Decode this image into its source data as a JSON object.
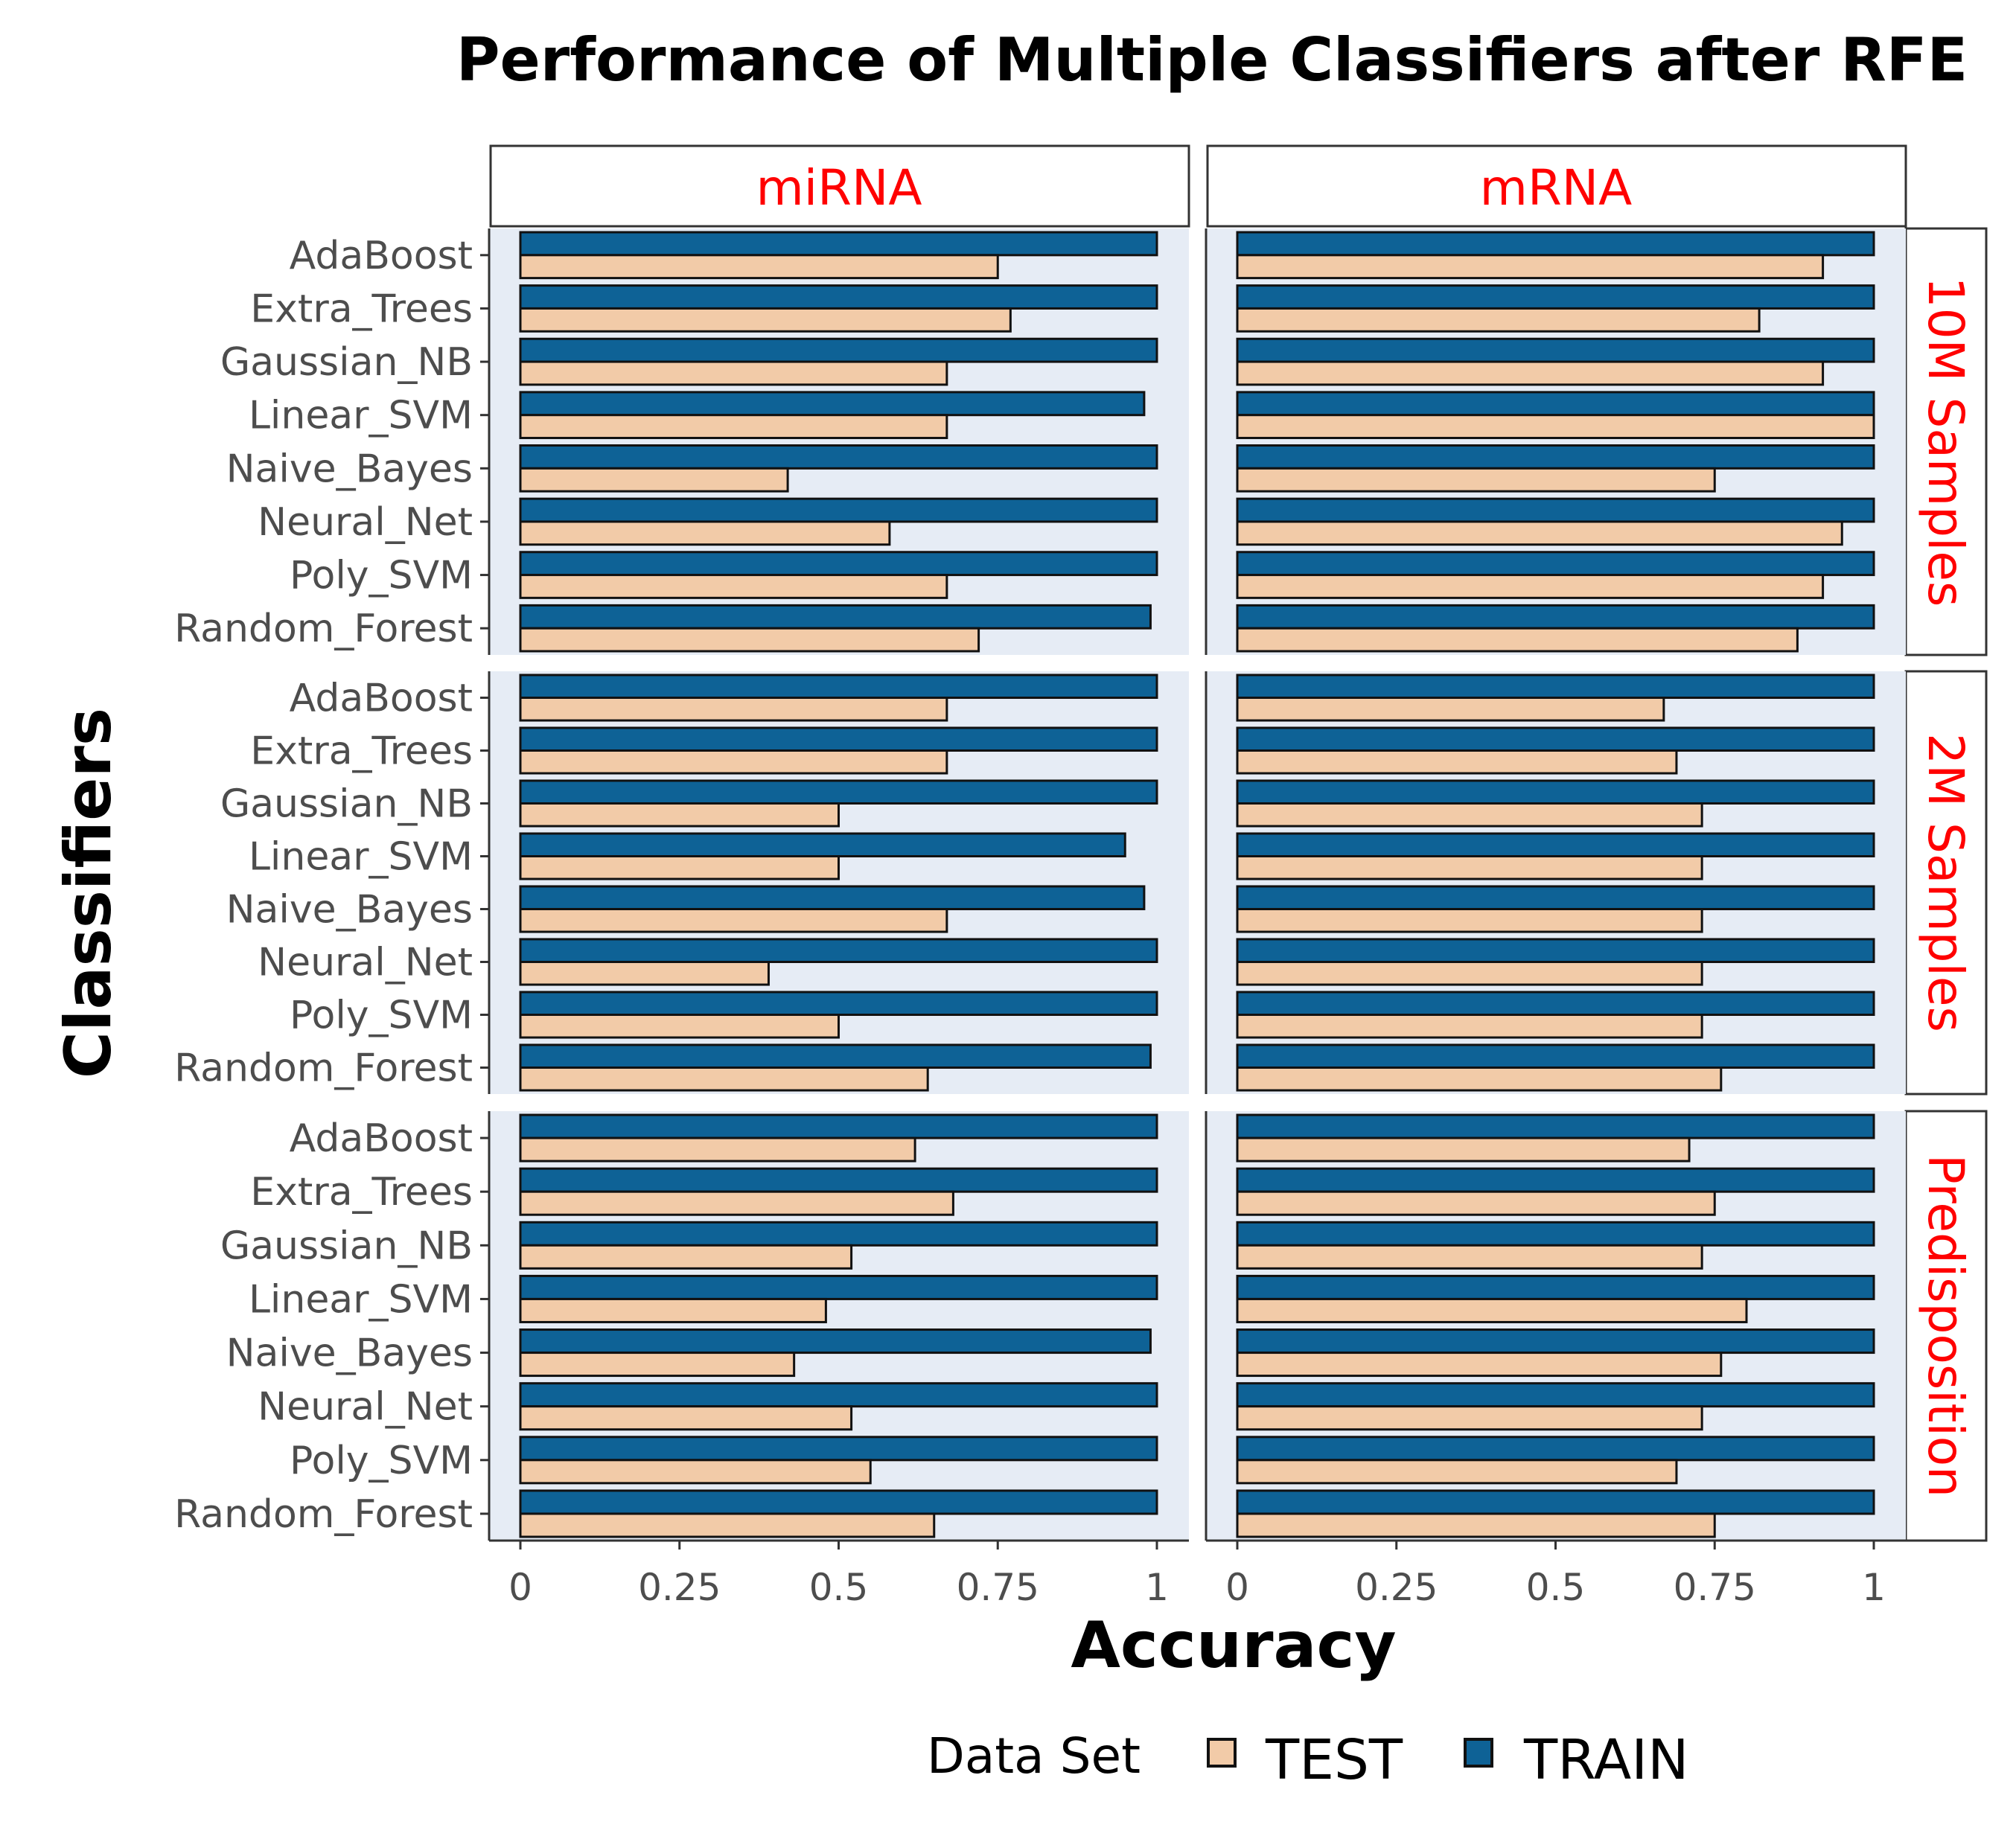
{
  "chart_data": {
    "type": "bar",
    "orientation": "horizontal",
    "title": "Performance of Multiple Classifiers after RFE",
    "xlabel": "Accuracy",
    "ylabel": "Classifiers",
    "xlim": [
      0,
      1
    ],
    "x_ticks": [
      "0",
      "0.25",
      "0.5",
      "0.75",
      "1"
    ],
    "x_tick_values": [
      0,
      0.25,
      0.5,
      0.75,
      1
    ],
    "categories": [
      "AdaBoost",
      "Extra_Trees",
      "Gaussian_NB",
      "Linear_SVM",
      "Naive_Bayes",
      "Neural_Net",
      "Poly_SVM",
      "Random_Forest"
    ],
    "columns": [
      "miRNA",
      "mRNA"
    ],
    "rows": [
      "10M Samples",
      "2M Samples",
      "Predisposition"
    ],
    "legend": {
      "title": "Data Set",
      "position": "bottom",
      "entries": [
        {
          "label": "TEST",
          "color": "#f2cba8"
        },
        {
          "label": "TRAIN",
          "color": "#0e6296"
        }
      ]
    },
    "colors": {
      "TEST": "#f2cba8",
      "TRAIN": "#0e6296",
      "strip_text": "#ff0000",
      "panel_bg": "#e6ecf5"
    },
    "panels": [
      {
        "row": "10M Samples",
        "col": "miRNA",
        "series": {
          "TRAIN": [
            1.0,
            1.0,
            1.0,
            0.98,
            1.0,
            1.0,
            1.0,
            0.99
          ],
          "TEST": [
            0.75,
            0.77,
            0.67,
            0.67,
            0.42,
            0.58,
            0.67,
            0.72
          ]
        }
      },
      {
        "row": "10M Samples",
        "col": "mRNA",
        "series": {
          "TRAIN": [
            1.0,
            1.0,
            1.0,
            1.0,
            1.0,
            1.0,
            1.0,
            1.0
          ],
          "TEST": [
            0.92,
            0.82,
            0.92,
            1.0,
            0.75,
            0.95,
            0.92,
            0.88
          ]
        }
      },
      {
        "row": "2M Samples",
        "col": "miRNA",
        "series": {
          "TRAIN": [
            1.0,
            1.0,
            1.0,
            0.95,
            0.98,
            1.0,
            1.0,
            0.99
          ],
          "TEST": [
            0.67,
            0.67,
            0.5,
            0.5,
            0.67,
            0.39,
            0.5,
            0.64
          ]
        }
      },
      {
        "row": "2M Samples",
        "col": "mRNA",
        "series": {
          "TRAIN": [
            1.0,
            1.0,
            1.0,
            1.0,
            1.0,
            1.0,
            1.0,
            1.0
          ],
          "TEST": [
            0.67,
            0.69,
            0.73,
            0.73,
            0.73,
            0.73,
            0.73,
            0.76
          ]
        }
      },
      {
        "row": "Predisposition",
        "col": "miRNA",
        "series": {
          "TRAIN": [
            1.0,
            1.0,
            1.0,
            1.0,
            0.99,
            1.0,
            1.0,
            1.0
          ],
          "TEST": [
            0.62,
            0.68,
            0.52,
            0.48,
            0.43,
            0.52,
            0.55,
            0.65
          ]
        }
      },
      {
        "row": "Predisposition",
        "col": "mRNA",
        "series": {
          "TRAIN": [
            1.0,
            1.0,
            1.0,
            1.0,
            1.0,
            1.0,
            1.0,
            1.0
          ],
          "TEST": [
            0.71,
            0.75,
            0.73,
            0.8,
            0.76,
            0.73,
            0.69,
            0.75
          ]
        }
      }
    ]
  }
}
